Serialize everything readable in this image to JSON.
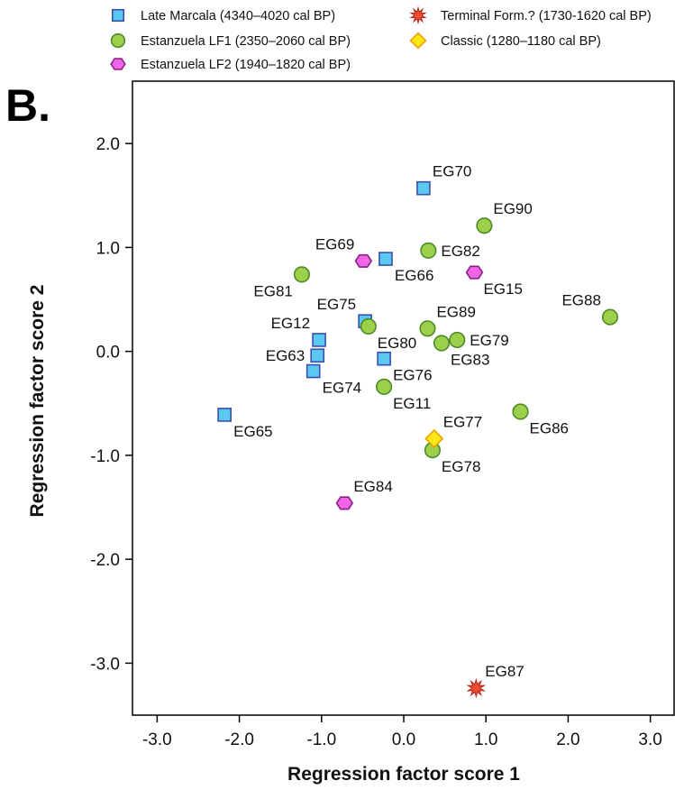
{
  "chart_data": {
    "type": "scatter",
    "panel_label": "B.",
    "xlabel": "Regression factor score 1",
    "ylabel": "Regression factor score 2",
    "xlim": [
      -3.3,
      3.3
    ],
    "ylim": [
      -3.5,
      2.6
    ],
    "xticks": [
      -3,
      -2,
      -1,
      0,
      1,
      2,
      3
    ],
    "yticks": [
      -3,
      -2,
      -1,
      0,
      1,
      2
    ],
    "xtick_labels": [
      "-3.0",
      "-2.0",
      "-1.0",
      "0.0",
      "1.0",
      "2.0",
      "3.0"
    ],
    "ytick_labels": [
      "-3.0",
      "-2.0",
      "-1.0",
      "0.0",
      "1.0",
      "2.0"
    ],
    "grid": false,
    "legend_position": "top",
    "series": [
      {
        "name": "Late Marcala (4340–4020 cal BP)",
        "marker": "square",
        "fill": "#5bc8f0",
        "stroke": "#3a4fb0",
        "points": [
          {
            "label": "EG70",
            "x": 0.24,
            "y": 1.57,
            "lpos": "upper-right"
          },
          {
            "label": "EG66",
            "x": -0.22,
            "y": 0.89,
            "lpos": "lower-right"
          },
          {
            "label": "EG75",
            "x": -0.47,
            "y": 0.29,
            "lpos": "upper-left"
          },
          {
            "label": "EG12",
            "x": -1.03,
            "y": 0.11,
            "lpos": "upper-left"
          },
          {
            "label": "EG63",
            "x": -1.05,
            "y": -0.04,
            "lpos": "left"
          },
          {
            "label": "EG74",
            "x": -1.1,
            "y": -0.19,
            "lpos": "lower-right"
          },
          {
            "label": "EG76",
            "x": -0.24,
            "y": -0.07,
            "lpos": "lower-right"
          },
          {
            "label": "EG65",
            "x": -2.18,
            "y": -0.61,
            "lpos": "lower-right"
          }
        ]
      },
      {
        "name": "Estanzuela LF1 (2350–2060 cal BP)",
        "marker": "circle",
        "fill": "#9ccf4a",
        "stroke": "#4e8a2a",
        "points": [
          {
            "label": "EG90",
            "x": 0.98,
            "y": 1.21,
            "lpos": "upper-right"
          },
          {
            "label": "EG82",
            "x": 0.3,
            "y": 0.97,
            "lpos": "right"
          },
          {
            "label": "EG81",
            "x": -1.24,
            "y": 0.74,
            "lpos": "lower-left"
          },
          {
            "label": "EG80",
            "x": -0.43,
            "y": 0.24,
            "lpos": "lower-right"
          },
          {
            "label": "EG89",
            "x": 0.29,
            "y": 0.22,
            "lpos": "upper-right"
          },
          {
            "label": "EG83",
            "x": 0.46,
            "y": 0.08,
            "lpos": "lower-right"
          },
          {
            "label": "EG79",
            "x": 0.65,
            "y": 0.11,
            "lpos": "right"
          },
          {
            "label": "EG88",
            "x": 2.51,
            "y": 0.33,
            "lpos": "upper-left"
          },
          {
            "label": "EG11",
            "x": -0.24,
            "y": -0.34,
            "lpos": "lower-right"
          },
          {
            "label": "EG86",
            "x": 1.42,
            "y": -0.58,
            "lpos": "lower-right"
          },
          {
            "label": "EG78",
            "x": 0.35,
            "y": -0.95,
            "lpos": "lower-right"
          }
        ]
      },
      {
        "name": "Estanzuela LF2 (1940–1820 cal BP)",
        "marker": "hexagon",
        "fill": "#ee66e6",
        "stroke": "#8a1f86",
        "points": [
          {
            "label": "EG69",
            "x": -0.49,
            "y": 0.87,
            "lpos": "upper-left"
          },
          {
            "label": "EG15",
            "x": 0.86,
            "y": 0.76,
            "lpos": "lower-right"
          },
          {
            "label": "EG84",
            "x": -0.72,
            "y": -1.46,
            "lpos": "upper-right"
          }
        ]
      },
      {
        "name": "Terminal Form.? (1730-1620 cal BP)",
        "marker": "star",
        "fill": "#ef4c33",
        "stroke": "#b02a18",
        "points": [
          {
            "label": "EG87",
            "x": 0.88,
            "y": -3.24,
            "lpos": "upper-right"
          }
        ]
      },
      {
        "name": "Classic (1280–1180 cal BP)",
        "marker": "diamond",
        "fill": "#ffe81a",
        "stroke": "#f0a000",
        "points": [
          {
            "label": "EG77",
            "x": 0.37,
            "y": -0.84,
            "lpos": "upper-right"
          }
        ]
      }
    ]
  }
}
